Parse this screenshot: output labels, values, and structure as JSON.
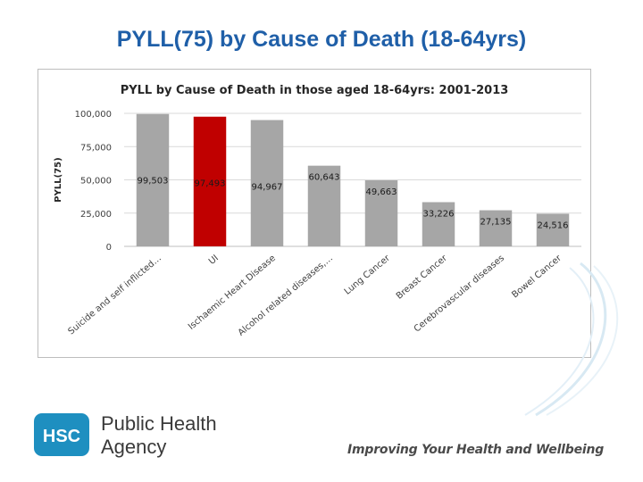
{
  "slide": {
    "title": "PYLL(75) by Cause of Death (18-64yrs)",
    "org_name_line1": "Public Health",
    "org_name_line2": "Agency",
    "logo_text": "HSC",
    "tagline": "Improving Your Health and Wellbeing"
  },
  "colors": {
    "title": "#1f5fa8",
    "bar_default": "#a6a6a6",
    "bar_highlight": "#c00000",
    "logo": "#1e8fc0"
  },
  "chart_data": {
    "type": "bar",
    "title": "PYLL by Cause of Death in those aged 18-64yrs: 2001-2013",
    "ylabel": "PYLL(75)",
    "xlabel": "",
    "ylim": [
      0,
      100000
    ],
    "yticks": [
      "0",
      "25,000",
      "50,000",
      "75,000",
      "100,000"
    ],
    "grid": true,
    "categories": [
      "Suicide and self inflicted…",
      "UI",
      "Ischaemic Heart Disease",
      "Alcohol related diseases,…",
      "Lung Cancer",
      "Breast Cancer",
      "Cerebrovascular diseases",
      "Bowel Cancer"
    ],
    "values": [
      99503,
      97493,
      94967,
      60643,
      49663,
      33226,
      27135,
      24516
    ],
    "value_labels": [
      "99,503",
      "97,493",
      "94,967",
      "60,643",
      "49,663",
      "33,226",
      "27,135",
      "24,516"
    ],
    "highlight_index": 1
  }
}
